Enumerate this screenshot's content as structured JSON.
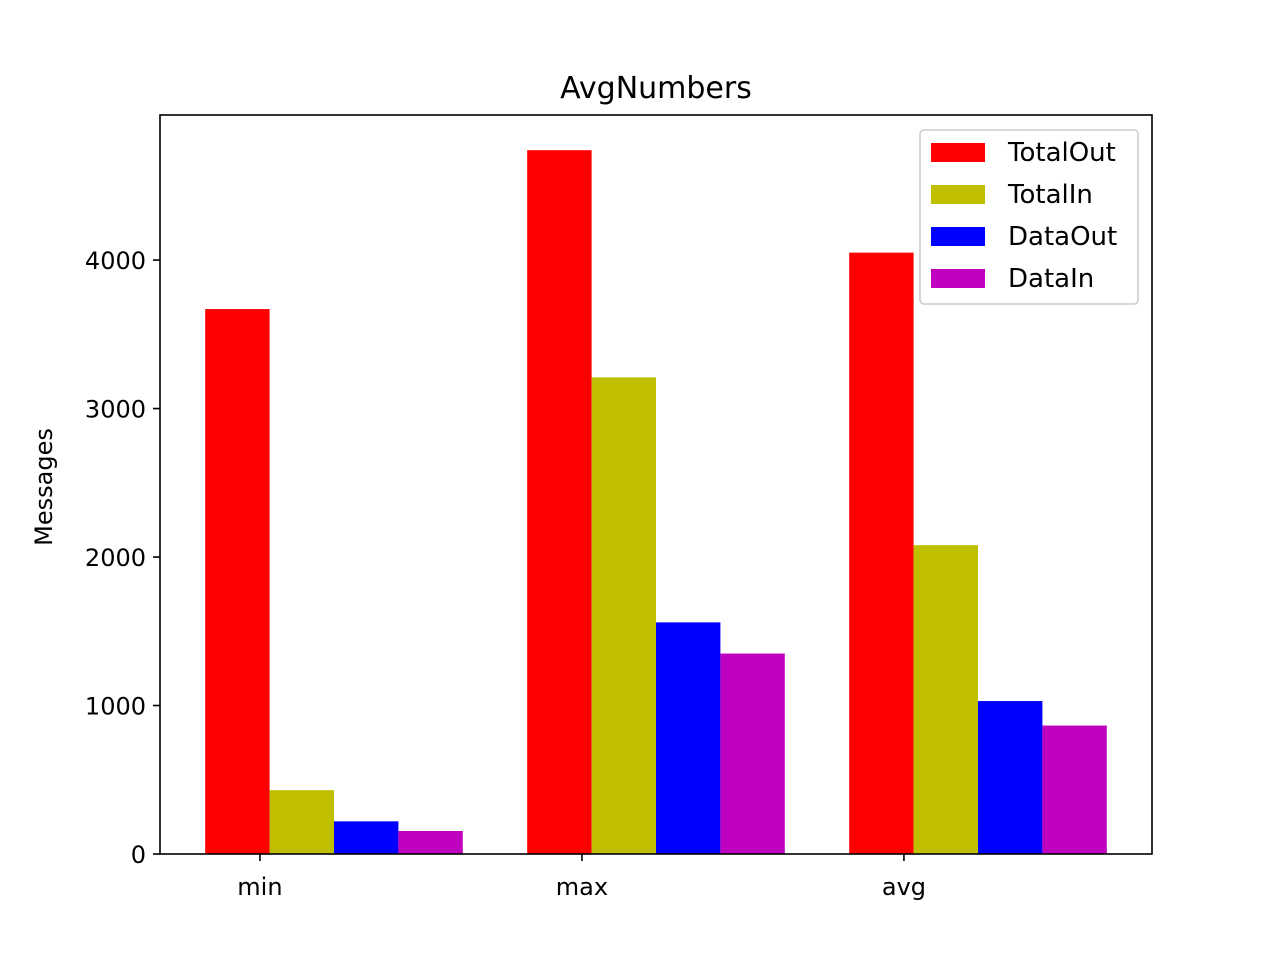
{
  "chart_data": {
    "type": "bar",
    "title": "AvgNumbers",
    "xlabel": "",
    "ylabel": "Messages",
    "categories": [
      "min",
      "max",
      "avg"
    ],
    "series": [
      {
        "name": "TotalOut",
        "color": "#ff0000",
        "values": [
          3670,
          4740,
          4050
        ]
      },
      {
        "name": "TotalIn",
        "color": "#bfbf00",
        "values": [
          430,
          3210,
          2080
        ]
      },
      {
        "name": "DataOut",
        "color": "#0000ff",
        "values": [
          220,
          1560,
          1030
        ]
      },
      {
        "name": "DataIn",
        "color": "#bf00bf",
        "values": [
          155,
          1350,
          865
        ]
      }
    ],
    "yticks": [
      0,
      1000,
      2000,
      3000,
      4000
    ],
    "ylim": [
      0,
      4977
    ],
    "legend": "upper-right",
    "grid": false
  }
}
